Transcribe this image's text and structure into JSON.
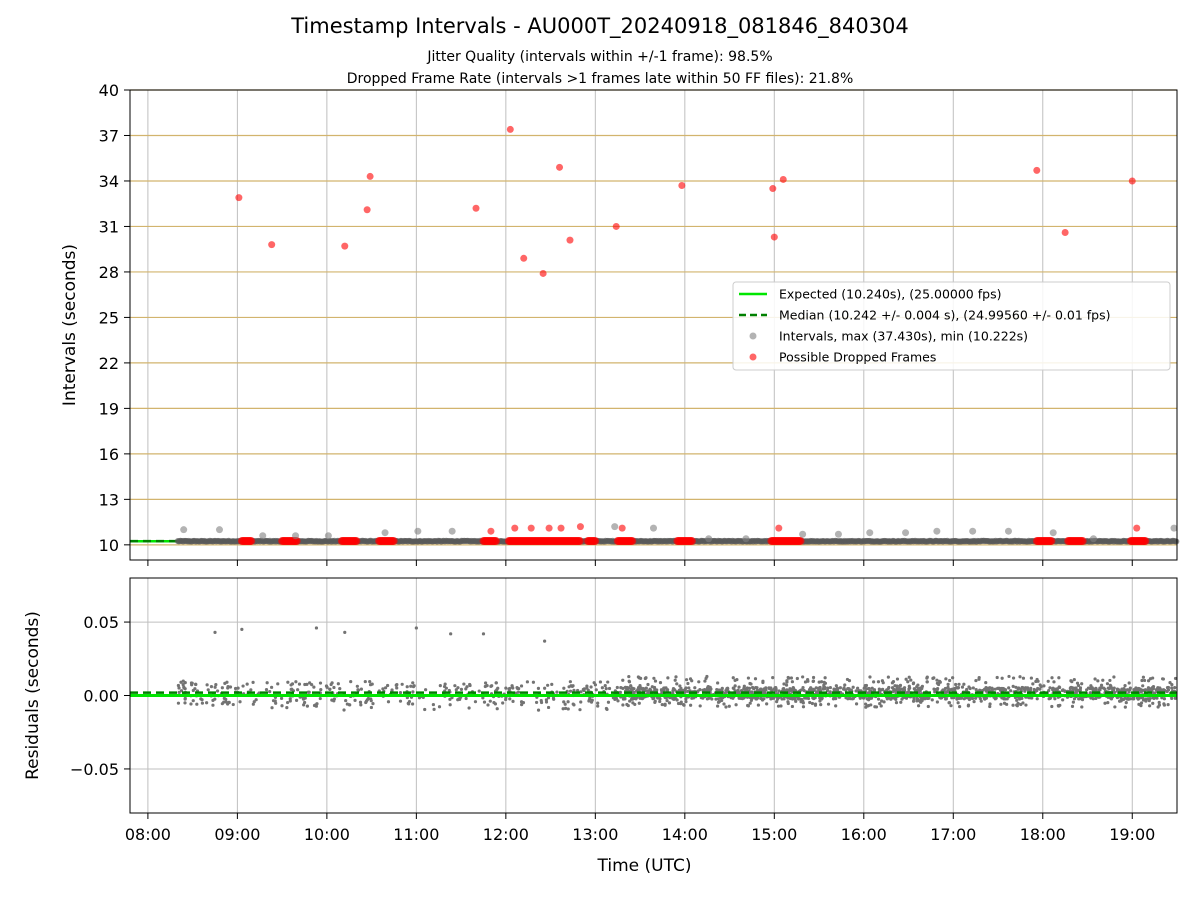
{
  "figure": {
    "title": "Timestamp Intervals - AU000T_20240918_081846_840304",
    "subtitle_1": "Jitter Quality (intervals within +/-1 frame): 98.5%",
    "subtitle_2": "Dropped Frame Rate (intervals >1 frames late within 50 FF files): 21.8%"
  },
  "chart_data": [
    {
      "type": "scatter",
      "title": "Timestamp Intervals - AU000T_20240918_081846_840304",
      "xlabel": "Time (UTC)",
      "ylabel": "Intervals (seconds)",
      "xlim": [
        "07:48",
        "19:30"
      ],
      "ylim": [
        9,
        40
      ],
      "x_ticks": [
        "08:00",
        "09:00",
        "10:00",
        "11:00",
        "12:00",
        "13:00",
        "14:00",
        "15:00",
        "16:00",
        "17:00",
        "18:00",
        "19:00"
      ],
      "y_ticks": [
        10,
        13,
        16,
        19,
        22,
        25,
        28,
        31,
        34,
        37,
        40
      ],
      "grid": true,
      "legend_position": "right",
      "colors": {
        "expected": "#00e600",
        "median": "#008000",
        "intervals": "#808080",
        "dropped": "#ff0000",
        "hgrid": "#d2b46e"
      },
      "expected_line": {
        "label": "Expected (10.240s), (25.00000 fps)",
        "value": 10.24
      },
      "median_line": {
        "label": "Median (10.242 +/- 0.004 s), (24.99560 +/- 0.01 fps)",
        "value": 10.242
      },
      "series": [
        {
          "name": "Intervals, max (37.430s), min (10.222s)",
          "x": [
            "08:24",
            "08:48",
            "09:17",
            "09:39",
            "10:01",
            "10:39",
            "11:01",
            "11:24",
            "13:13",
            "13:39",
            "14:16",
            "14:41",
            "15:19",
            "15:43",
            "16:04",
            "16:28",
            "16:49",
            "17:13",
            "17:37",
            "18:07",
            "18:34",
            "19:28"
          ],
          "y": [
            11.0,
            11.0,
            10.6,
            10.6,
            10.6,
            10.8,
            10.9,
            10.9,
            11.2,
            11.1,
            10.4,
            10.4,
            10.7,
            10.7,
            10.8,
            10.8,
            10.9,
            10.9,
            10.9,
            10.8,
            10.4,
            11.1
          ]
        },
        {
          "name": "Possible Dropped Frames",
          "x": [
            "09:01",
            "09:23",
            "10:12",
            "10:27",
            "10:29",
            "11:40",
            "11:50",
            "12:03",
            "12:06",
            "12:12",
            "12:17",
            "12:25",
            "12:29",
            "12:36",
            "12:37",
            "12:43",
            "12:50",
            "13:14",
            "13:18",
            "13:58",
            "14:59",
            "15:00",
            "15:03",
            "15:06",
            "17:56",
            "18:15",
            "19:00",
            "19:03"
          ],
          "y": [
            32.9,
            29.8,
            29.7,
            32.1,
            34.3,
            32.2,
            10.9,
            37.4,
            11.1,
            28.9,
            11.1,
            27.9,
            11.1,
            34.9,
            11.1,
            30.1,
            11.2,
            31.0,
            11.1,
            33.7,
            33.5,
            30.3,
            11.1,
            34.1,
            34.7,
            30.6,
            34.0,
            11.1
          ],
          "clusters": [
            [
              "09:03",
              "09:10"
            ],
            [
              "09:30",
              "09:40"
            ],
            [
              "10:10",
              "10:20"
            ],
            [
              "10:35",
              "10:45"
            ],
            [
              "11:45",
              "11:54"
            ],
            [
              "12:02",
              "12:50"
            ],
            [
              "12:55",
              "13:00"
            ],
            [
              "13:15",
              "13:25"
            ],
            [
              "13:55",
              "14:05"
            ],
            [
              "14:58",
              "15:18"
            ],
            [
              "17:56",
              "18:06"
            ],
            [
              "18:17",
              "18:27"
            ],
            [
              "18:59",
              "19:09"
            ]
          ]
        }
      ]
    },
    {
      "type": "scatter",
      "xlabel": "Time (UTC)",
      "ylabel": "Residuals (seconds)",
      "xlim": [
        "07:48",
        "19:30"
      ],
      "ylim": [
        -0.08,
        0.08
      ],
      "y_ticks": [
        0.05,
        0.0,
        -0.05
      ],
      "y_tick_labels": [
        "0.05",
        "0.00",
        "−0.05"
      ],
      "x_ticks": [
        "08:00",
        "09:00",
        "10:00",
        "11:00",
        "12:00",
        "13:00",
        "14:00",
        "15:00",
        "16:00",
        "17:00",
        "18:00",
        "19:00"
      ],
      "grid": true,
      "expected_residual": 0.0,
      "median_residual": 0.002,
      "series": [
        {
          "name": "Residuals",
          "outliers_x": [
            "08:45",
            "09:03",
            "09:53",
            "10:12",
            "11:00",
            "11:23",
            "11:45",
            "12:26"
          ],
          "outliers_y": [
            0.043,
            0.045,
            0.046,
            0.043,
            0.046,
            0.042,
            0.042,
            0.037
          ],
          "segments": [
            {
              "start": "08:20",
              "end": "13:12",
              "low": -0.01,
              "high": 0.01,
              "band": 0.008,
              "count": 380
            },
            {
              "start": "13:12",
              "end": "19:30",
              "low": -0.008,
              "high": 0.013,
              "band": 0.004,
              "count": 1600
            }
          ]
        }
      ]
    }
  ]
}
